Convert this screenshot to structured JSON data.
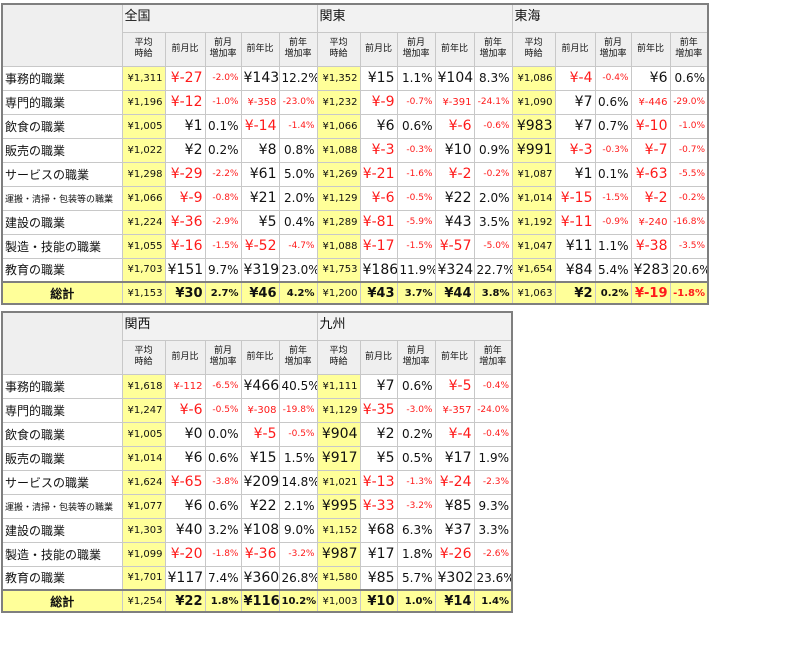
{
  "table1": {
    "regions": [
      "全国",
      "関東",
      "東海"
    ],
    "headers": [
      "平均時給",
      "前月比",
      "前月増加率",
      "前年比",
      "前年増加率"
    ],
    "rows": [
      {
        "job": "事務的職業",
        "cells": [
          [
            "¥1,311",
            "¥-27",
            "-2.0%",
            "¥143",
            "12.2%"
          ],
          [
            "¥1,352",
            "¥15",
            "1.1%",
            "¥104",
            "8.3%"
          ],
          [
            "¥1,086",
            "¥-4",
            "-0.4%",
            "¥6",
            "0.6%"
          ]
        ]
      },
      {
        "job": "専門的職業",
        "cells": [
          [
            "¥1,196",
            "¥-12",
            "-1.0%",
            "¥-358",
            "-23.0%"
          ],
          [
            "¥1,232",
            "¥-9",
            "-0.7%",
            "¥-391",
            "-24.1%"
          ],
          [
            "¥1,090",
            "¥7",
            "0.6%",
            "¥-446",
            "-29.0%"
          ]
        ]
      },
      {
        "job": "飲食の職業",
        "cells": [
          [
            "¥1,005",
            "¥1",
            "0.1%",
            "¥-14",
            "-1.4%"
          ],
          [
            "¥1,066",
            "¥6",
            "0.6%",
            "¥-6",
            "-0.6%"
          ],
          [
            "¥983",
            "¥7",
            "0.7%",
            "¥-10",
            "-1.0%"
          ]
        ]
      },
      {
        "job": "販売の職業",
        "cells": [
          [
            "¥1,022",
            "¥2",
            "0.2%",
            "¥8",
            "0.8%"
          ],
          [
            "¥1,088",
            "¥-3",
            "-0.3%",
            "¥10",
            "0.9%"
          ],
          [
            "¥991",
            "¥-3",
            "-0.3%",
            "¥-7",
            "-0.7%"
          ]
        ]
      },
      {
        "job": "サービスの職業",
        "cells": [
          [
            "¥1,298",
            "¥-29",
            "-2.2%",
            "¥61",
            "5.0%"
          ],
          [
            "¥1,269",
            "¥-21",
            "-1.6%",
            "¥-2",
            "-0.2%"
          ],
          [
            "¥1,087",
            "¥1",
            "0.1%",
            "¥-63",
            "-5.5%"
          ]
        ]
      },
      {
        "job": "運搬・清掃・包装等の職業",
        "cells": [
          [
            "¥1,066",
            "¥-9",
            "-0.8%",
            "¥21",
            "2.0%"
          ],
          [
            "¥1,129",
            "¥-6",
            "-0.5%",
            "¥22",
            "2.0%"
          ],
          [
            "¥1,014",
            "¥-15",
            "-1.5%",
            "¥-2",
            "-0.2%"
          ]
        ]
      },
      {
        "job": "建設の職業",
        "cells": [
          [
            "¥1,224",
            "¥-36",
            "-2.9%",
            "¥5",
            "0.4%"
          ],
          [
            "¥1,289",
            "¥-81",
            "-5.9%",
            "¥43",
            "3.5%"
          ],
          [
            "¥1,192",
            "¥-11",
            "-0.9%",
            "¥-240",
            "-16.8%"
          ]
        ]
      },
      {
        "job": "製造・技能の職業",
        "cells": [
          [
            "¥1,055",
            "¥-16",
            "-1.5%",
            "¥-52",
            "-4.7%"
          ],
          [
            "¥1,088",
            "¥-17",
            "-1.5%",
            "¥-57",
            "-5.0%"
          ],
          [
            "¥1,047",
            "¥11",
            "1.1%",
            "¥-38",
            "-3.5%"
          ]
        ]
      },
      {
        "job": "教育の職業",
        "cells": [
          [
            "¥1,703",
            "¥151",
            "9.7%",
            "¥319",
            "23.0%"
          ],
          [
            "¥1,753",
            "¥186",
            "11.9%",
            "¥324",
            "22.7%"
          ],
          [
            "¥1,654",
            "¥84",
            "5.4%",
            "¥283",
            "20.6%"
          ]
        ]
      }
    ],
    "total": {
      "label": "総計",
      "cells": [
        [
          "¥1,153",
          "¥30",
          "2.7%",
          "¥46",
          "4.2%"
        ],
        [
          "¥1,200",
          "¥43",
          "3.7%",
          "¥44",
          "3.8%"
        ],
        [
          "¥1,063",
          "¥2",
          "0.2%",
          "¥-19",
          "-1.8%"
        ]
      ]
    }
  },
  "table2": {
    "regions": [
      "関西",
      "九州"
    ],
    "headers": [
      "平均時給",
      "前月比",
      "前月増加率",
      "前年比",
      "前年増加率"
    ],
    "rows": [
      {
        "job": "事務的職業",
        "cells": [
          [
            "¥1,618",
            "¥-112",
            "-6.5%",
            "¥466",
            "40.5%"
          ],
          [
            "¥1,111",
            "¥7",
            "0.6%",
            "¥-5",
            "-0.4%"
          ]
        ]
      },
      {
        "job": "専門的職業",
        "cells": [
          [
            "¥1,247",
            "¥-6",
            "-0.5%",
            "¥-308",
            "-19.8%"
          ],
          [
            "¥1,129",
            "¥-35",
            "-3.0%",
            "¥-357",
            "-24.0%"
          ]
        ]
      },
      {
        "job": "飲食の職業",
        "cells": [
          [
            "¥1,005",
            "¥0",
            "0.0%",
            "¥-5",
            "-0.5%"
          ],
          [
            "¥904",
            "¥2",
            "0.2%",
            "¥-4",
            "-0.4%"
          ]
        ]
      },
      {
        "job": "販売の職業",
        "cells": [
          [
            "¥1,014",
            "¥6",
            "0.6%",
            "¥15",
            "1.5%"
          ],
          [
            "¥917",
            "¥5",
            "0.5%",
            "¥17",
            "1.9%"
          ]
        ]
      },
      {
        "job": "サービスの職業",
        "cells": [
          [
            "¥1,624",
            "¥-65",
            "-3.8%",
            "¥209",
            "14.8%"
          ],
          [
            "¥1,021",
            "¥-13",
            "-1.3%",
            "¥-24",
            "-2.3%"
          ]
        ]
      },
      {
        "job": "運搬・清掃・包装等の職業",
        "cells": [
          [
            "¥1,077",
            "¥6",
            "0.6%",
            "¥22",
            "2.1%"
          ],
          [
            "¥995",
            "¥-33",
            "-3.2%",
            "¥85",
            "9.3%"
          ]
        ]
      },
      {
        "job": "建設の職業",
        "cells": [
          [
            "¥1,303",
            "¥40",
            "3.2%",
            "¥108",
            "9.0%"
          ],
          [
            "¥1,152",
            "¥68",
            "6.3%",
            "¥37",
            "3.3%"
          ]
        ]
      },
      {
        "job": "製造・技能の職業",
        "cells": [
          [
            "¥1,099",
            "¥-20",
            "-1.8%",
            "¥-36",
            "-3.2%"
          ],
          [
            "¥987",
            "¥17",
            "1.8%",
            "¥-26",
            "-2.6%"
          ]
        ]
      },
      {
        "job": "教育の職業",
        "cells": [
          [
            "¥1,701",
            "¥117",
            "7.4%",
            "¥360",
            "26.8%"
          ],
          [
            "¥1,580",
            "¥85",
            "5.7%",
            "¥302",
            "23.6%"
          ]
        ]
      }
    ],
    "total": {
      "label": "総計",
      "cells": [
        [
          "¥1,254",
          "¥22",
          "1.8%",
          "¥116",
          "10.2%"
        ],
        [
          "¥1,003",
          "¥10",
          "1.0%",
          "¥14",
          "1.4%"
        ]
      ]
    }
  },
  "colors": {
    "negative": "#ff1a1a",
    "wage_highlight": "#ffff99",
    "header_bg": "#efefef"
  }
}
